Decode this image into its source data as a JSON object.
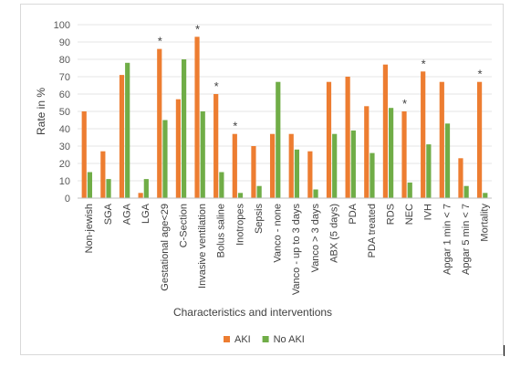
{
  "chart_data": {
    "type": "bar",
    "title": "",
    "xlabel": "Characteristics and interventions",
    "ylabel": "Rate in %",
    "ylim": [
      0,
      100
    ],
    "yticks": [
      0,
      10,
      20,
      30,
      40,
      50,
      60,
      70,
      80,
      90,
      100
    ],
    "grid": true,
    "legend_position": "bottom",
    "categories": [
      "Non-jewish",
      "SGA",
      "AGA",
      "LGA",
      "Gestational age<29",
      "C-Section",
      "Invasive ventilation",
      "Bolus saline",
      "Inotropes",
      "Sepsis",
      "Vanco - none",
      "Vanco - up to 3 days",
      "Vanco > 3 days",
      "ABX (5 days)",
      "PDA",
      "PDA treated",
      "RDS",
      "NEC",
      "IVH",
      "Apgar 1 min < 7",
      "Apgar 5 min < 7",
      "Mortality"
    ],
    "series": [
      {
        "name": "AKI",
        "color": "#ED7D31",
        "values": [
          50,
          27,
          71,
          3,
          86,
          57,
          93,
          60,
          37,
          30,
          37,
          37,
          27,
          67,
          70,
          53,
          77,
          50,
          73,
          67,
          23,
          67
        ]
      },
      {
        "name": "No AKI",
        "color": "#70AD47",
        "values": [
          15,
          11,
          78,
          11,
          45,
          80,
          50,
          15,
          3,
          7,
          67,
          28,
          5,
          37,
          39,
          26,
          52,
          9,
          31,
          43,
          7,
          3
        ]
      }
    ],
    "significance_marker": "*",
    "significant_categories": [
      "Gestational age<29",
      "Invasive ventilation",
      "Bolus saline",
      "Inotropes",
      "NEC",
      "IVH",
      "Mortality"
    ]
  }
}
